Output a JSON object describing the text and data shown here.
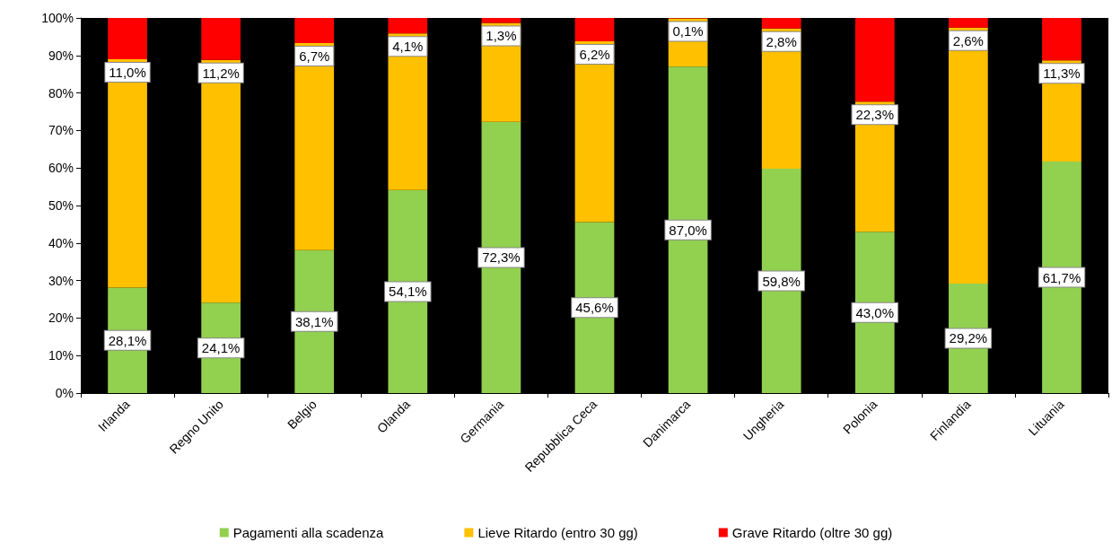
{
  "chart_data": {
    "type": "bar",
    "stacked": true,
    "categories": [
      "Irlanda",
      "Regno Unito",
      "Belgio",
      "Olanda",
      "Germania",
      "Repubblica Ceca",
      "Danimarca",
      "Ungheria",
      "Polonia",
      "Finlandia",
      "Lituania"
    ],
    "series": [
      {
        "name": "Pagamenti alla scadenza",
        "color": "#92d050",
        "values": [
          28.1,
          24.1,
          38.1,
          54.1,
          72.3,
          45.6,
          87.0,
          59.8,
          43.0,
          29.2,
          61.7
        ],
        "value_labels": [
          "28,1%",
          "24,1%",
          "38,1%",
          "54,1%",
          "72,3%",
          "45,6%",
          "87,0%",
          "59,8%",
          "43,0%",
          "29,2%",
          "61,7%"
        ]
      },
      {
        "name": "Lieve Ritardo (entro 30 gg)",
        "color": "#ffc000",
        "values": [
          60.9,
          64.7,
          55.2,
          41.8,
          26.4,
          48.2,
          12.9,
          37.4,
          34.7,
          68.2,
          27.0
        ]
      },
      {
        "name": "Grave Ritardo (oltre 30 gg)",
        "color": "#ff0000",
        "values": [
          11.0,
          11.2,
          6.7,
          4.1,
          1.3,
          6.2,
          0.1,
          2.8,
          22.3,
          2.6,
          11.3
        ],
        "value_labels": [
          "11,0%",
          "11,2%",
          "6,7%",
          "4,1%",
          "1,3%",
          "6,2%",
          "0,1%",
          "2,8%",
          "22,3%",
          "2,6%",
          "11,3%"
        ]
      }
    ],
    "ylim": [
      0,
      100
    ],
    "yticks": [
      {
        "value": 0,
        "label": "0%"
      },
      {
        "value": 10,
        "label": "10%"
      },
      {
        "value": 20,
        "label": "20%"
      },
      {
        "value": 30,
        "label": "30%"
      },
      {
        "value": 40,
        "label": "40%"
      },
      {
        "value": 50,
        "label": "50%"
      },
      {
        "value": 60,
        "label": "60%"
      },
      {
        "value": 70,
        "label": "70%"
      },
      {
        "value": 80,
        "label": "80%"
      },
      {
        "value": 90,
        "label": "90%"
      },
      {
        "value": 100,
        "label": "100%"
      }
    ],
    "grid": false,
    "legend": "bottom"
  }
}
